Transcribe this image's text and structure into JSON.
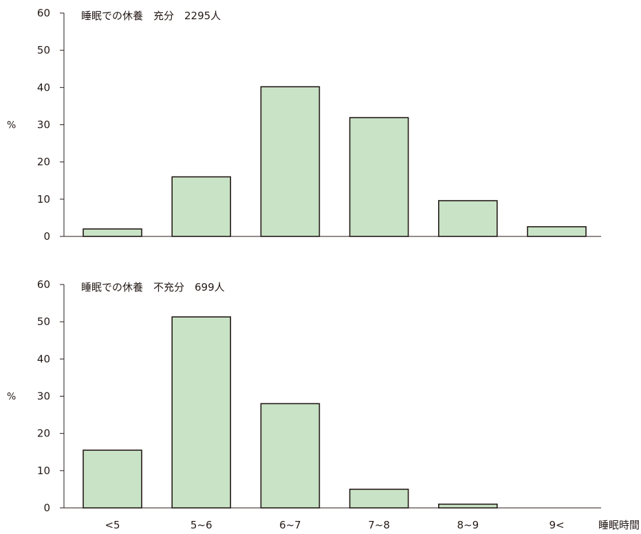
{
  "colors": {
    "bar_fill": "#c8e3c6",
    "stroke": "#231815"
  },
  "chart_data": [
    {
      "type": "bar",
      "title": "睡眠での休養　充分　2295人",
      "ylabel": "%",
      "xlabel": "",
      "ylim": [
        0,
        60
      ],
      "yticks": [
        0,
        10,
        20,
        30,
        40,
        50,
        60
      ],
      "categories": [
        "<5",
        "5~6",
        "6~7",
        "7~8",
        "8~9",
        "9<"
      ],
      "values": [
        2,
        16,
        40.2,
        31.9,
        9.6,
        2.6
      ],
      "show_categories": false
    },
    {
      "type": "bar",
      "title": "睡眠での休養　不充分　699人",
      "ylabel": "%",
      "xlabel": "睡眠時間",
      "ylim": [
        0,
        60
      ],
      "yticks": [
        0,
        10,
        20,
        30,
        40,
        50,
        60
      ],
      "categories": [
        "<5",
        "5~6",
        "6~7",
        "7~8",
        "8~9",
        "9<"
      ],
      "values": [
        15.5,
        51.3,
        28,
        5,
        1,
        0
      ],
      "show_categories": true
    }
  ]
}
